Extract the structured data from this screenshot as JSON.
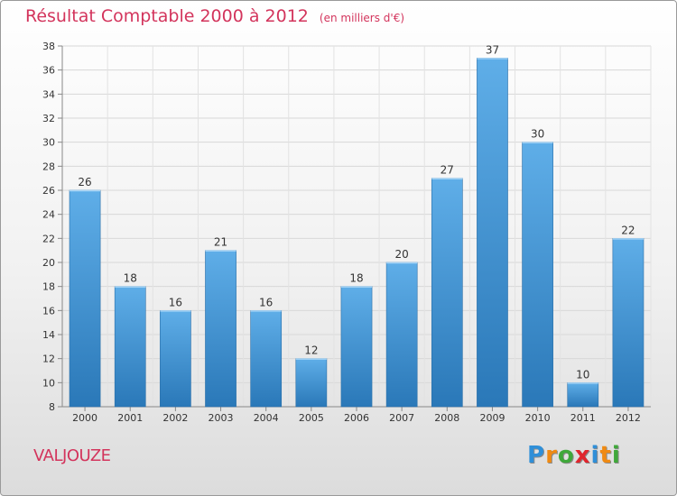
{
  "title": {
    "main": "Résultat Comptable 2000 à 2012",
    "unit": "(en milliers d'€)"
  },
  "place": "VALJOUZE",
  "logo": {
    "letters": [
      "P",
      "r",
      "o",
      "x",
      "i",
      "t",
      "i"
    ],
    "colors": [
      "#2f8fd8",
      "#f08a12",
      "#3fa83a",
      "#e0262d",
      "#2f8fd8",
      "#f08a12",
      "#3fa83a"
    ]
  },
  "chart_data": {
    "type": "bar",
    "title": "Résultat Comptable 2000 à 2012",
    "subtitle": "(en milliers d'€)",
    "categories": [
      "2000",
      "2001",
      "2002",
      "2003",
      "2004",
      "2005",
      "2006",
      "2007",
      "2008",
      "2009",
      "2010",
      "2011",
      "2012"
    ],
    "values": [
      26,
      18,
      16,
      21,
      16,
      12,
      18,
      20,
      27,
      37,
      30,
      10,
      22
    ],
    "ylim": [
      8,
      38
    ],
    "yticks": [
      8,
      10,
      12,
      14,
      16,
      18,
      20,
      22,
      24,
      26,
      28,
      30,
      32,
      34,
      36,
      38
    ],
    "grid": true,
    "bar_color_top": "#5faee8",
    "bar_color_bottom": "#2a78b8"
  }
}
